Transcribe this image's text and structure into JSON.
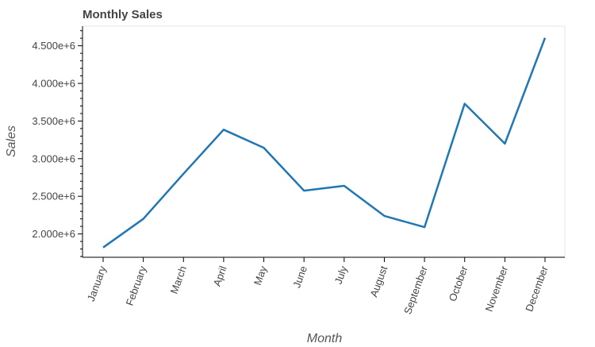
{
  "chart_data": {
    "type": "line",
    "title": "Monthly Sales",
    "xlabel": "Month",
    "ylabel": "Sales",
    "categories": [
      "January",
      "February",
      "March",
      "April",
      "May",
      "June",
      "July",
      "August",
      "September",
      "October",
      "November",
      "December"
    ],
    "series": [
      {
        "values": [
          1820000,
          2200000,
          2800000,
          3385000,
          3145000,
          2575000,
          2640000,
          2240000,
          2090000,
          3730000,
          3200000,
          4605000
        ],
        "color": "#1f77b4"
      }
    ],
    "ylim": [
      1690000,
      4760000
    ],
    "yticks": [
      2000000,
      2500000,
      3000000,
      3500000,
      4000000,
      4500000
    ],
    "ytick_labels": [
      "2.000e+6",
      "2.500e+6",
      "3.000e+6",
      "3.500e+6",
      "4.000e+6",
      "4.500e+6"
    ],
    "grid": false,
    "legend": "none"
  }
}
